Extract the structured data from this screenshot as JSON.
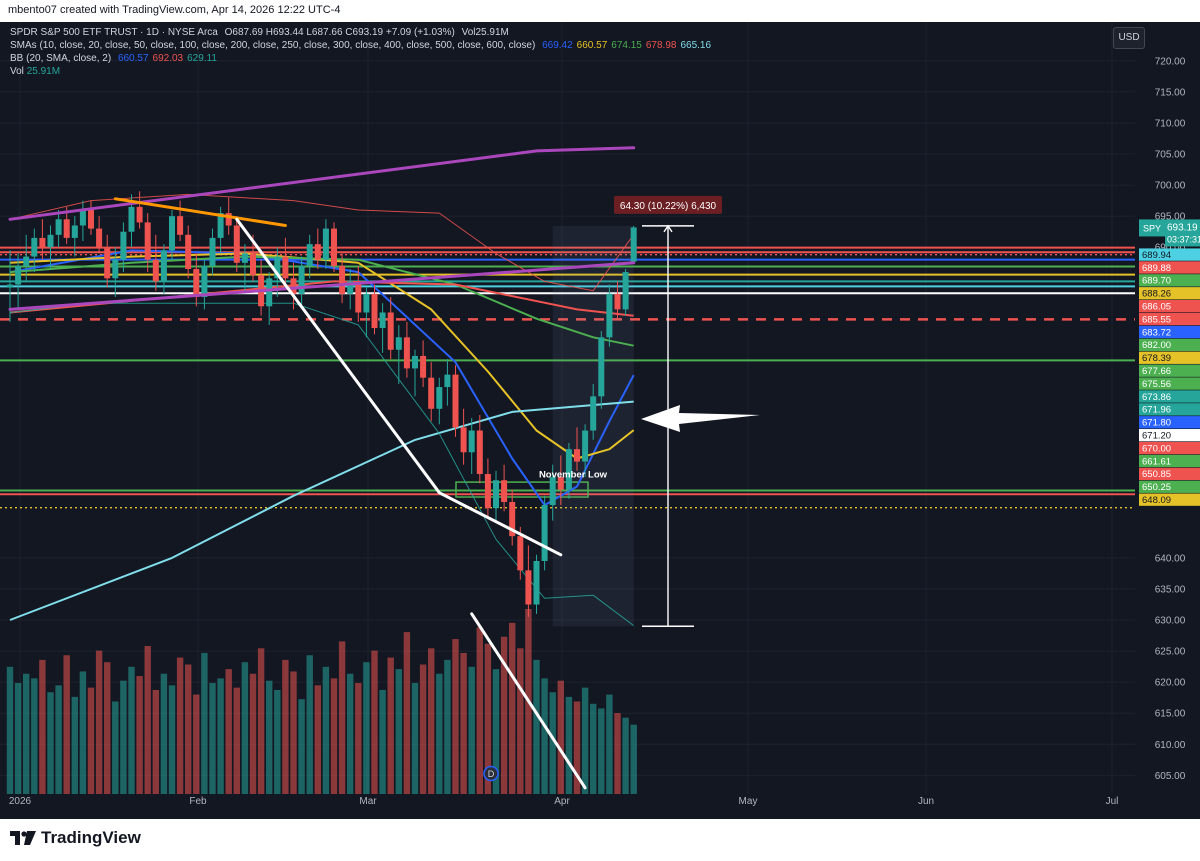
{
  "header": {
    "created_by": "mbento07 created with TradingView.com, Apr 14, 2026 12:22 UTC-4"
  },
  "legend": {
    "symbol_line": {
      "name": "SPDR S&P 500 ETF TRUST · 1D · NYSE Arca",
      "ohlc": "O687.69 H693.44 L687.66 C693.19 +7.09 (+1.03%)",
      "vol_label": "Vol",
      "vol_value": "25.91M"
    },
    "sma_line": {
      "label": "SMAs (10, close, 20, close, 50, close, 100, close, 200, close, 250, close, 300, close, 400, close, 500, close, 600, close)",
      "values": [
        {
          "text": "669.42",
          "color": "#2962ff"
        },
        {
          "text": "660.57",
          "color": "#e6c229"
        },
        {
          "text": "674.15",
          "color": "#4caf50"
        },
        {
          "text": "678.98",
          "color": "#ef5350"
        },
        {
          "text": "665.16",
          "color": "#80deea"
        }
      ]
    },
    "bb_line": {
      "label": "BB (20, SMA, close, 2)",
      "values": [
        {
          "text": "660.57",
          "color": "#2962ff"
        },
        {
          "text": "692.03",
          "color": "#ef5350"
        },
        {
          "text": "629.11",
          "color": "#26a69a"
        }
      ]
    },
    "vol_line": {
      "label": "Vol",
      "value": "25.91M"
    }
  },
  "toolbar": {
    "currency_label": "USD"
  },
  "chart_data": {
    "type": "candlestick",
    "symbol": "SPY",
    "price_axis": {
      "min": 602,
      "max": 724,
      "ticks": [
        720,
        715,
        710,
        705,
        700,
        695,
        690,
        640,
        635,
        630,
        625,
        620,
        615,
        610,
        605
      ]
    },
    "time_axis": {
      "labels": [
        "2026",
        "Feb",
        "Mar",
        "Apr",
        "May",
        "Jun",
        "Jul"
      ]
    },
    "candles": [
      [
        683.5,
        689.5,
        678.0,
        684.0
      ],
      [
        684.0,
        689.0,
        680.0,
        687.0
      ],
      [
        687.0,
        692.0,
        684.5,
        688.5
      ],
      [
        688.5,
        693.0,
        686.0,
        691.5
      ],
      [
        691.5,
        694.5,
        688.0,
        690.0
      ],
      [
        690.0,
        693.5,
        686.5,
        692.0
      ],
      [
        692.0,
        696.0,
        690.0,
        694.5
      ],
      [
        694.5,
        696.5,
        690.5,
        691.5
      ],
      [
        691.5,
        695.0,
        688.5,
        693.5
      ],
      [
        693.5,
        697.5,
        691.0,
        696.0
      ],
      [
        696.0,
        697.5,
        692.0,
        693.0
      ],
      [
        693.0,
        695.0,
        689.0,
        690.0
      ],
      [
        690.0,
        692.0,
        683.5,
        685.0
      ],
      [
        685.0,
        690.0,
        682.0,
        688.0
      ],
      [
        688.0,
        694.0,
        686.0,
        692.5
      ],
      [
        692.5,
        698.5,
        690.0,
        696.5
      ],
      [
        696.5,
        699.0,
        693.0,
        694.0
      ],
      [
        694.0,
        695.5,
        686.0,
        688.0
      ],
      [
        688.0,
        692.0,
        683.0,
        684.5
      ],
      [
        684.5,
        690.5,
        682.5,
        689.5
      ],
      [
        689.5,
        696.0,
        688.0,
        695.0
      ],
      [
        695.0,
        697.5,
        691.0,
        692.0
      ],
      [
        692.0,
        693.5,
        685.0,
        686.5
      ],
      [
        686.5,
        689.0,
        680.5,
        682.0
      ],
      [
        682.0,
        688.0,
        680.0,
        687.0
      ],
      [
        687.0,
        693.0,
        685.5,
        691.5
      ],
      [
        691.5,
        696.5,
        689.0,
        695.5
      ],
      [
        695.5,
        698.0,
        692.0,
        693.5
      ],
      [
        693.5,
        695.0,
        686.0,
        687.5
      ],
      [
        687.5,
        690.5,
        683.0,
        689.0
      ],
      [
        689.0,
        692.0,
        684.5,
        685.5
      ],
      [
        685.5,
        688.0,
        679.0,
        680.5
      ],
      [
        680.5,
        686.0,
        677.5,
        685.0
      ],
      [
        685.0,
        690.0,
        682.0,
        688.5
      ],
      [
        688.5,
        691.5,
        684.0,
        685.0
      ],
      [
        685.0,
        687.5,
        680.0,
        682.5
      ],
      [
        682.5,
        688.5,
        680.5,
        687.0
      ],
      [
        687.0,
        692.0,
        685.0,
        690.5
      ],
      [
        690.5,
        693.0,
        686.5,
        688.0
      ],
      [
        688.0,
        694.5,
        686.5,
        693.0
      ],
      [
        693.0,
        694.0,
        686.0,
        687.0
      ],
      [
        687.0,
        689.0,
        681.0,
        682.5
      ],
      [
        682.5,
        686.5,
        680.0,
        684.5
      ],
      [
        684.5,
        687.0,
        678.0,
        679.5
      ],
      [
        679.5,
        683.5,
        675.5,
        682.5
      ],
      [
        682.5,
        684.0,
        676.0,
        677.0
      ],
      [
        677.0,
        681.0,
        673.0,
        679.5
      ],
      [
        679.5,
        682.0,
        672.0,
        673.5
      ],
      [
        673.5,
        677.5,
        668.0,
        675.5
      ],
      [
        675.5,
        678.0,
        669.0,
        670.5
      ],
      [
        670.5,
        673.5,
        666.0,
        672.5
      ],
      [
        672.5,
        675.0,
        667.5,
        669.0
      ],
      [
        669.0,
        671.5,
        662.0,
        664.0
      ],
      [
        664.0,
        669.0,
        661.5,
        667.5
      ],
      [
        667.5,
        672.0,
        664.5,
        669.5
      ],
      [
        669.5,
        671.0,
        659.5,
        661.0
      ],
      [
        661.0,
        664.0,
        655.0,
        657.0
      ],
      [
        657.0,
        662.5,
        653.5,
        660.5
      ],
      [
        660.5,
        663.0,
        652.0,
        653.5
      ],
      [
        653.5,
        656.0,
        646.5,
        648.0
      ],
      [
        648.0,
        654.0,
        646.0,
        652.5
      ],
      [
        652.5,
        655.0,
        647.5,
        649.0
      ],
      [
        649.0,
        651.0,
        642.0,
        643.5
      ],
      [
        643.5,
        645.0,
        636.5,
        638.0
      ],
      [
        638.0,
        642.0,
        630.5,
        632.5
      ],
      [
        632.5,
        640.5,
        631.0,
        639.5
      ],
      [
        639.5,
        650.0,
        638.0,
        648.5
      ],
      [
        648.5,
        655.0,
        646.0,
        653.0
      ],
      [
        653.0,
        656.5,
        648.5,
        651.0
      ],
      [
        651.0,
        658.5,
        649.5,
        657.5
      ],
      [
        657.5,
        661.0,
        654.0,
        655.5
      ],
      [
        655.5,
        661.5,
        653.0,
        660.5
      ],
      [
        660.5,
        668.0,
        659.0,
        666.0
      ],
      [
        666.0,
        676.5,
        664.0,
        675.5
      ],
      [
        675.5,
        684.0,
        674.0,
        682.5
      ],
      [
        682.5,
        684.5,
        678.5,
        680.0
      ],
      [
        680.0,
        686.5,
        679.0,
        686.0
      ],
      [
        687.69,
        693.44,
        687.66,
        693.19
      ]
    ],
    "volume": [
      55,
      48,
      52,
      50,
      58,
      44,
      47,
      60,
      42,
      53,
      46,
      62,
      57,
      40,
      49,
      55,
      51,
      64,
      45,
      52,
      47,
      59,
      56,
      43,
      61,
      48,
      50,
      54,
      46,
      57,
      52,
      63,
      49,
      45,
      58,
      53,
      41,
      60,
      47,
      55,
      50,
      66,
      52,
      48,
      57,
      62,
      45,
      59,
      54,
      70,
      48,
      56,
      63,
      52,
      58,
      67,
      61,
      55,
      72,
      65,
      54,
      68,
      74,
      63,
      80,
      58,
      50,
      44,
      49,
      42,
      40,
      46,
      39,
      37,
      43,
      35,
      33,
      30
    ],
    "series": [
      {
        "name": "669.42",
        "color": "#2962ff",
        "values": [
          [
            0,
            686.0
          ],
          [
            15,
            689.5
          ],
          [
            29,
            689.0
          ],
          [
            43,
            686.0
          ],
          [
            55,
            671.5
          ],
          [
            62,
            656.0
          ],
          [
            66,
            648.5
          ],
          [
            70,
            651.5
          ],
          [
            74,
            662.0
          ],
          [
            77,
            669.42
          ]
        ]
      },
      {
        "name": "660.57",
        "color": "#e6c229",
        "values": [
          [
            0,
            687.5
          ],
          [
            15,
            688.5
          ],
          [
            29,
            689.0
          ],
          [
            43,
            687.5
          ],
          [
            52,
            680.0
          ],
          [
            59,
            670.0
          ],
          [
            65,
            660.5
          ],
          [
            70,
            656.0
          ],
          [
            74,
            657.5
          ],
          [
            77,
            660.57
          ]
        ]
      },
      {
        "name": "674.15",
        "color": "#4caf50",
        "values": [
          [
            0,
            686.0
          ],
          [
            15,
            687.5
          ],
          [
            29,
            688.5
          ],
          [
            43,
            688.0
          ],
          [
            55,
            684.0
          ],
          [
            65,
            678.5
          ],
          [
            72,
            675.5
          ],
          [
            77,
            674.15
          ]
        ]
      },
      {
        "name": "678.98",
        "color": "#ef5350",
        "values": [
          [
            0,
            679.5
          ],
          [
            20,
            682.0
          ],
          [
            40,
            684.5
          ],
          [
            55,
            684.0
          ],
          [
            70,
            680.0
          ],
          [
            77,
            678.98
          ]
        ]
      },
      {
        "name": "665.16",
        "color": "#80deea",
        "values": [
          [
            0,
            630.0
          ],
          [
            20,
            640.0
          ],
          [
            35,
            650.0
          ],
          [
            50,
            659.0
          ],
          [
            62,
            663.5
          ],
          [
            77,
            665.16
          ]
        ]
      },
      {
        "name": "692.03",
        "color": "#ef5350",
        "values": [
          [
            0,
            694.5
          ],
          [
            10,
            697.5
          ],
          [
            22,
            698.5
          ],
          [
            35,
            697.5
          ],
          [
            43,
            696.0
          ],
          [
            53,
            695.5
          ],
          [
            60,
            689.0
          ],
          [
            66,
            684.5
          ],
          [
            72,
            683.0
          ],
          [
            77,
            692.03
          ]
        ]
      },
      {
        "name": "629.11",
        "color": "#26a69a",
        "values": [
          [
            0,
            679.5
          ],
          [
            10,
            681.0
          ],
          [
            22,
            681.0
          ],
          [
            35,
            681.0
          ],
          [
            43,
            677.5
          ],
          [
            53,
            660.0
          ],
          [
            60,
            643.0
          ],
          [
            66,
            633.5
          ],
          [
            72,
            634.0
          ],
          [
            77,
            629.11
          ]
        ]
      }
    ],
    "horizontal_levels": [
      {
        "price": 689.94,
        "color": "#ef5350"
      },
      {
        "price": 689.2,
        "color": "#ef5350"
      },
      {
        "price": 688.8,
        "color": "#ef5350"
      },
      {
        "price": 688.0,
        "color": "#2962ff"
      },
      {
        "price": 686.9,
        "color": "#4caf50"
      },
      {
        "price": 685.6,
        "color": "#e6c229"
      },
      {
        "price": 684.5,
        "color": "#26a69a"
      },
      {
        "price": 683.7,
        "color": "#4dd0e1"
      },
      {
        "price": 682.6,
        "color": "#ffffff"
      },
      {
        "price": 678.39,
        "color": "#ef5350"
      },
      {
        "price": 671.8,
        "color": "#4caf50"
      },
      {
        "price": 650.85,
        "color": "#4caf50"
      },
      {
        "price": 650.25,
        "color": "#ef5350"
      },
      {
        "price": 648.09,
        "color": "#e6c229"
      }
    ],
    "trendlines": [
      {
        "color": "#ab47bc",
        "points": [
          [
            0,
            694.5
          ],
          [
            65,
            705.5
          ],
          [
            77,
            706.0
          ]
        ]
      },
      {
        "color": "#ab47bc",
        "points": [
          [
            0,
            680.0
          ],
          [
            77,
            687.5
          ]
        ]
      },
      {
        "color": "#ff9800",
        "points": [
          [
            13,
            697.8
          ],
          [
            34,
            693.5
          ]
        ]
      },
      {
        "color": "#ffffff",
        "points": [
          [
            28,
            694.5
          ],
          [
            53,
            650.5
          ],
          [
            68,
            640.5
          ]
        ]
      },
      {
        "color": "#ffffff",
        "points": [
          [
            57,
            631.0
          ],
          [
            71,
            603.0
          ]
        ]
      }
    ],
    "price_labels": [
      {
        "text": "689.94",
        "bg": "#4dd0e1",
        "fg": "#131722",
        "price": 689.94
      },
      {
        "text": "689.88",
        "bg": "#ef5350",
        "fg": "#ffffff",
        "price": 689.88
      },
      {
        "text": "689.70",
        "bg": "#4caf50",
        "fg": "#ffffff",
        "price": 689.7
      },
      {
        "text": "688.26",
        "bg": "#e6c229",
        "fg": "#131722",
        "price": 688.26
      },
      {
        "text": "686.05",
        "bg": "#ef5350",
        "fg": "#ffffff",
        "price": 686.05
      },
      {
        "text": "685.55",
        "bg": "#ef5350",
        "fg": "#ffffff",
        "price": 685.55
      },
      {
        "text": "683.72",
        "bg": "#2962ff",
        "fg": "#ffffff",
        "price": 683.72
      },
      {
        "text": "682.00",
        "bg": "#4caf50",
        "fg": "#ffffff",
        "price": 682.0
      },
      {
        "text": "678.39",
        "bg": "#e6c229",
        "fg": "#131722",
        "price": 678.39
      },
      {
        "text": "677.66",
        "bg": "#4caf50",
        "fg": "#ffffff",
        "price": 677.66
      },
      {
        "text": "675.56",
        "bg": "#4caf50",
        "fg": "#ffffff",
        "price": 675.56
      },
      {
        "text": "673.86",
        "bg": "#26a69a",
        "fg": "#ffffff",
        "price": 673.86
      },
      {
        "text": "671.96",
        "bg": "#26a69a",
        "fg": "#ffffff",
        "price": 671.96
      },
      {
        "text": "671.80",
        "bg": "#2962ff",
        "fg": "#ffffff",
        "price": 671.8
      },
      {
        "text": "671.20",
        "bg": "#ffffff",
        "fg": "#131722",
        "price": 671.2
      },
      {
        "text": "670.00",
        "bg": "#ef5350",
        "fg": "#ffffff",
        "price": 670.0
      },
      {
        "text": "661.61",
        "bg": "#4caf50",
        "fg": "#ffffff",
        "price": 661.61
      },
      {
        "text": "650.85",
        "bg": "#ef5350",
        "fg": "#ffffff",
        "price": 650.85
      },
      {
        "text": "650.25",
        "bg": "#4caf50",
        "fg": "#ffffff",
        "price": 650.25
      },
      {
        "text": "648.09",
        "bg": "#e6c229",
        "fg": "#131722",
        "price": 648.09
      }
    ],
    "last_price": {
      "symbol": "SPY",
      "price_text": "693.19",
      "countdown": "03:37:31",
      "price": 693.19
    },
    "measure": {
      "text": "64.30 (10.22%) 6,430",
      "from_price": 629.0,
      "to_price": 693.44
    },
    "annotations": {
      "november_low": "November Low",
      "dividend_marker": "D"
    },
    "colors": {
      "up": "#26a69a",
      "down": "#ef5350",
      "background": "#131722",
      "grid": "#1e222d",
      "axis_text": "#b2b5be"
    }
  },
  "footer": {
    "brand": "TradingView"
  }
}
